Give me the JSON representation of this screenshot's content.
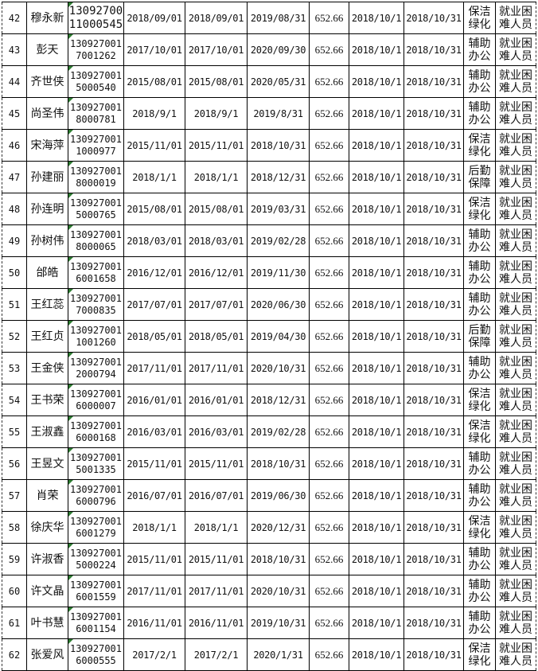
{
  "rows": [
    {
      "no": "42",
      "name": "穆永新",
      "id1": "13092700",
      "id2": "11000545",
      "start": "2018/09/01",
      "contract_start": "2018/09/01",
      "end": "2019/08/31",
      "amount": "652.66",
      "period_start": "2018/10/1",
      "period_end": "2018/10/31",
      "type1": "保洁",
      "type2": "绿化",
      "cat1": "就业困",
      "cat2": "难人员"
    },
    {
      "no": "43",
      "name": "彭天",
      "id1": "130927001",
      "id2": "7001262",
      "start": "2017/10/01",
      "contract_start": "2017/10/01",
      "end": "2020/09/30",
      "amount": "652.66",
      "period_start": "2018/10/1",
      "period_end": "2018/10/31",
      "type1": "辅助",
      "type2": "办公",
      "cat1": "就业困",
      "cat2": "难人员"
    },
    {
      "no": "44",
      "name": "齐世侠",
      "id1": "130927001",
      "id2": "5000540",
      "start": "2015/08/01",
      "contract_start": "2015/08/01",
      "end": "2020/05/31",
      "amount": "652.66",
      "period_start": "2018/10/1",
      "period_end": "2018/10/31",
      "type1": "辅助",
      "type2": "办公",
      "cat1": "就业困",
      "cat2": "难人员"
    },
    {
      "no": "45",
      "name": "尚圣伟",
      "id1": "130927001",
      "id2": "8000781",
      "start": "2018/9/1",
      "contract_start": "2018/9/1",
      "end": "2019/8/31",
      "amount": "652.66",
      "period_start": "2018/10/1",
      "period_end": "2018/10/31",
      "type1": "辅助",
      "type2": "办公",
      "cat1": "就业困",
      "cat2": "难人员"
    },
    {
      "no": "46",
      "name": "宋海萍",
      "id1": "130927001",
      "id2": "1000977",
      "start": "2015/11/01",
      "contract_start": "2015/11/01",
      "end": "2018/10/31",
      "amount": "652.66",
      "period_start": "2018/10/1",
      "period_end": "2018/10/31",
      "type1": "保洁",
      "type2": "绿化",
      "cat1": "就业困",
      "cat2": "难人员"
    },
    {
      "no": "47",
      "name": "孙建丽",
      "id1": "130927001",
      "id2": "8000019",
      "start": "2018/1/1",
      "contract_start": "2018/1/1",
      "end": "2018/12/31",
      "amount": "652.66",
      "period_start": "2018/10/1",
      "period_end": "2018/10/31",
      "type1": "后勤",
      "type2": "保障",
      "cat1": "就业困",
      "cat2": "难人员"
    },
    {
      "no": "48",
      "name": "孙连明",
      "id1": "130927001",
      "id2": "5000765",
      "start": "2015/08/01",
      "contract_start": "2015/08/01",
      "end": "2019/03/31",
      "amount": "652.66",
      "period_start": "2018/10/1",
      "period_end": "2018/10/31",
      "type1": "保洁",
      "type2": "绿化",
      "cat1": "就业困",
      "cat2": "难人员"
    },
    {
      "no": "49",
      "name": "孙树伟",
      "id1": "130927001",
      "id2": "8000065",
      "start": "2018/03/01",
      "contract_start": "2018/03/01",
      "end": "2019/02/28",
      "amount": "652.66",
      "period_start": "2018/10/1",
      "period_end": "2018/10/31",
      "type1": "辅助",
      "type2": "办公",
      "cat1": "就业困",
      "cat2": "难人员"
    },
    {
      "no": "50",
      "name": "邰皓",
      "id1": "130927001",
      "id2": "6001658",
      "start": "2016/12/01",
      "contract_start": "2016/12/01",
      "end": "2019/11/30",
      "amount": "652.66",
      "period_start": "2018/10/1",
      "period_end": "2018/10/31",
      "type1": "辅助",
      "type2": "办公",
      "cat1": "就业困",
      "cat2": "难人员"
    },
    {
      "no": "51",
      "name": "王红蕊",
      "id1": "130927001",
      "id2": "7000835",
      "start": "2017/07/01",
      "contract_start": "2017/07/01",
      "end": "2020/06/30",
      "amount": "652.66",
      "period_start": "2018/10/1",
      "period_end": "2018/10/31",
      "type1": "辅助",
      "type2": "办公",
      "cat1": "就业困",
      "cat2": "难人员"
    },
    {
      "no": "52",
      "name": "王红贞",
      "id1": "130927001",
      "id2": "1001260",
      "start": "2018/05/01",
      "contract_start": "2018/05/01",
      "end": "2019/04/30",
      "amount": "652.66",
      "period_start": "2018/10/1",
      "period_end": "2018/10/31",
      "type1": "后勤",
      "type2": "保障",
      "cat1": "就业困",
      "cat2": "难人员"
    },
    {
      "no": "53",
      "name": "王金侠",
      "id1": "130927001",
      "id2": "2000794",
      "start": "2017/11/01",
      "contract_start": "2017/11/01",
      "end": "2020/10/31",
      "amount": "652.66",
      "period_start": "2018/10/1",
      "period_end": "2018/10/31",
      "type1": "辅助",
      "type2": "办公",
      "cat1": "就业困",
      "cat2": "难人员"
    },
    {
      "no": "54",
      "name": "王书荣",
      "id1": "130927001",
      "id2": "6000007",
      "start": "2016/01/01",
      "contract_start": "2016/01/01",
      "end": "2018/12/31",
      "amount": "652.66",
      "period_start": "2018/10/1",
      "period_end": "2018/10/31",
      "type1": "保洁",
      "type2": "绿化",
      "cat1": "就业困",
      "cat2": "难人员"
    },
    {
      "no": "55",
      "name": "王淑鑫",
      "id1": "130927001",
      "id2": "6000168",
      "start": "2016/03/01",
      "contract_start": "2016/03/01",
      "end": "2019/02/28",
      "amount": "652.66",
      "period_start": "2018/10/1",
      "period_end": "2018/10/31",
      "type1": "保洁",
      "type2": "绿化",
      "cat1": "就业困",
      "cat2": "难人员"
    },
    {
      "no": "56",
      "name": "王昱文",
      "id1": "130927001",
      "id2": "5001335",
      "start": "2015/11/01",
      "contract_start": "2015/11/01",
      "end": "2018/10/31",
      "amount": "652.66",
      "period_start": "2018/10/1",
      "period_end": "2018/10/31",
      "type1": "辅助",
      "type2": "办公",
      "cat1": "就业困",
      "cat2": "难人员"
    },
    {
      "no": "57",
      "name": "肖荣",
      "id1": "130927001",
      "id2": "6000796",
      "start": "2016/07/01",
      "contract_start": "2016/07/01",
      "end": "2019/06/30",
      "amount": "652.66",
      "period_start": "2018/10/1",
      "period_end": "2018/10/31",
      "type1": "辅助",
      "type2": "办公",
      "cat1": "就业困",
      "cat2": "难人员"
    },
    {
      "no": "58",
      "name": "徐庆华",
      "id1": "130927001",
      "id2": "6001279",
      "start": "2018/1/1",
      "contract_start": "2018/1/1",
      "end": "2020/12/31",
      "amount": "652.66",
      "period_start": "2018/10/1",
      "period_end": "2018/10/31",
      "type1": "保洁",
      "type2": "绿化",
      "cat1": "就业困",
      "cat2": "难人员"
    },
    {
      "no": "59",
      "name": "许淑香",
      "id1": "130927001",
      "id2": "5000224",
      "start": "2015/11/01",
      "contract_start": "2015/11/01",
      "end": "2018/10/31",
      "amount": "652.66",
      "period_start": "2018/10/1",
      "period_end": "2018/10/31",
      "type1": "辅助",
      "type2": "办公",
      "cat1": "就业困",
      "cat2": "难人员"
    },
    {
      "no": "60",
      "name": "许文晶",
      "id1": "130927001",
      "id2": "6001559",
      "start": "2017/11/01",
      "contract_start": "2017/11/01",
      "end": "2020/10/31",
      "amount": "652.66",
      "period_start": "2018/10/1",
      "period_end": "2018/10/31",
      "type1": "辅助",
      "type2": "办公",
      "cat1": "就业困",
      "cat2": "难人员"
    },
    {
      "no": "61",
      "name": "叶书慧",
      "id1": "130927001",
      "id2": "6001154",
      "start": "2016/11/01",
      "contract_start": "2016/11/01",
      "end": "2019/10/31",
      "amount": "652.66",
      "period_start": "2018/10/1",
      "period_end": "2018/10/31",
      "type1": "辅助",
      "type2": "办公",
      "cat1": "就业困",
      "cat2": "难人员"
    },
    {
      "no": "62",
      "name": "张爱风",
      "id1": "130927001",
      "id2": "6000555",
      "start": "2017/2/1",
      "contract_start": "2017/2/1",
      "end": "2020/1/31",
      "amount": "652.66",
      "period_start": "2018/10/1",
      "period_end": "2018/10/31",
      "type1": "保洁",
      "type2": "绿化",
      "cat1": "就业困",
      "cat2": "难人员"
    }
  ],
  "colors": {
    "grid": "#000000",
    "comment_marker": "#2e7d32"
  }
}
